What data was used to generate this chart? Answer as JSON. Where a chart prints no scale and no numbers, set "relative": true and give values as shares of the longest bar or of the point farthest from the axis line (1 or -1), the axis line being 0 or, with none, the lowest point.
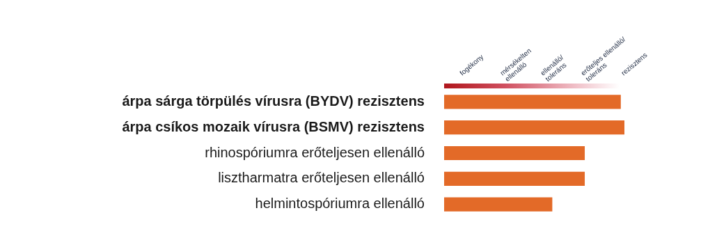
{
  "chart_data": {
    "type": "bar",
    "orientation": "horizontal",
    "categories": [
      "árpa sárga törpülés vírusra (BYDV) rezisztens",
      "árpa csíkos mozaik vírusra (BSMV) rezisztens",
      "rhinospóriumra erőteljesen ellenálló",
      "lisztharmatra erőteljesen ellenálló",
      "helmintospóriumra ellenálló"
    ],
    "values": [
      0.98,
      1,
      0.78,
      0.78,
      0.6
    ],
    "relative": true,
    "color": "#e36a28",
    "annotations": [
      "fogékony",
      "mérsékelten ellenálló",
      "ellenálló/toleráns",
      "erőteljes ellenálló/toleráns",
      "rezisztens"
    ],
    "legend": false
  }
}
